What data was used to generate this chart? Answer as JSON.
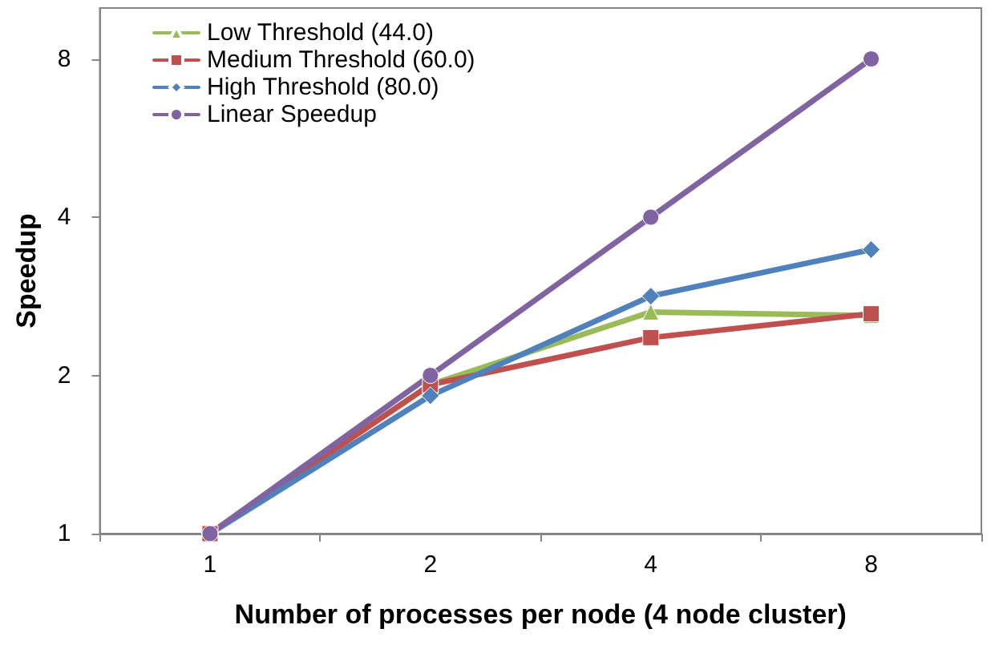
{
  "chart_data": {
    "type": "line",
    "xlabel": "Number of processes per node (4 node cluster)",
    "ylabel": "Speedup",
    "categories": [
      "1",
      "2",
      "4",
      "8"
    ],
    "log": "y",
    "ylim": [
      1,
      10
    ],
    "yticks": [
      1,
      2,
      4,
      8
    ],
    "grid": false,
    "legend": "top left",
    "line_style": "solid",
    "series": [
      {
        "name": "Low Threshold (44.0)",
        "color": "#9bbb59",
        "marker": "triangle",
        "values": [
          1,
          1.92,
          2.64,
          2.6
        ]
      },
      {
        "name": "Medium Threshold (60.0)",
        "color": "#c0504d",
        "marker": "square",
        "values": [
          1,
          1.92,
          2.36,
          2.62
        ]
      },
      {
        "name": "High Threshold (80.0)",
        "color": "#4f81bd",
        "marker": "diamond",
        "values": [
          1,
          1.83,
          2.83,
          3.47
        ]
      },
      {
        "name": "Linear Speedup",
        "color": "#8064a2",
        "marker": "circle",
        "values": [
          1,
          2,
          4,
          8
        ]
      }
    ]
  }
}
